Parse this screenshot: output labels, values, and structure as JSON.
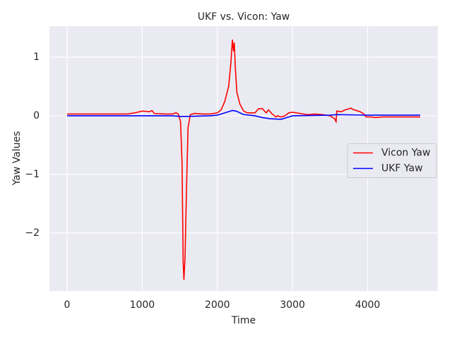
{
  "chart_data": {
    "type": "line",
    "title": "UKF vs. Vicon: Yaw",
    "x_label": "Time",
    "y_label": "Yaw Values",
    "xlim": [
      -235,
      4935
    ],
    "ylim": [
      -2.99,
      1.53
    ],
    "xticks": [
      0,
      1000,
      2000,
      3000,
      4000
    ],
    "yticks": [
      {
        "value": -2,
        "label": "−2"
      },
      {
        "value": -1,
        "label": "−1"
      },
      0,
      1
    ],
    "grid": true,
    "background": "#eaeaf2",
    "legend": "right",
    "series": [
      {
        "name": "Vicon Yaw",
        "color": "#ff0000",
        "x": [
          0,
          500,
          800,
          900,
          1000,
          1100,
          1130,
          1160,
          1300,
          1400,
          1450,
          1480,
          1510,
          1530,
          1545,
          1555,
          1570,
          1590,
          1610,
          1640,
          1700,
          1800,
          1900,
          2000,
          2050,
          2100,
          2150,
          2180,
          2200,
          2215,
          2225,
          2240,
          2260,
          2300,
          2350,
          2400,
          2500,
          2550,
          2600,
          2650,
          2680,
          2730,
          2780,
          2800,
          2850,
          2900,
          2950,
          3000,
          3100,
          3200,
          3300,
          3400,
          3500,
          3560,
          3580,
          3590,
          3650,
          3700,
          3780,
          3800,
          3900,
          3950,
          3980,
          4050,
          4100,
          4200,
          4500,
          4700
        ],
        "values": [
          0.03,
          0.03,
          0.03,
          0.05,
          0.08,
          0.07,
          0.09,
          0.04,
          0.03,
          0.03,
          0.05,
          0.03,
          -0.1,
          -0.8,
          -2.5,
          -2.8,
          -2.4,
          -1.2,
          -0.2,
          0.02,
          0.04,
          0.03,
          0.03,
          0.05,
          0.1,
          0.25,
          0.5,
          0.9,
          1.3,
          1.1,
          1.25,
          0.8,
          0.4,
          0.2,
          0.08,
          0.05,
          0.05,
          0.12,
          0.12,
          0.05,
          0.1,
          0.03,
          -0.02,
          0.0,
          -0.02,
          0.0,
          0.05,
          0.06,
          0.04,
          0.02,
          0.03,
          0.02,
          0.0,
          -0.05,
          -0.1,
          0.08,
          0.07,
          0.1,
          0.13,
          0.11,
          0.07,
          0.03,
          -0.02,
          -0.02,
          -0.03,
          -0.02,
          -0.02,
          -0.02
        ]
      },
      {
        "name": "UKF Yaw",
        "color": "#0000ff",
        "x": [
          0,
          1000,
          1400,
          1500,
          1600,
          1900,
          2000,
          2100,
          2200,
          2250,
          2350,
          2500,
          2600,
          2700,
          2850,
          2950,
          3000,
          3500,
          3600,
          4000,
          4700
        ],
        "values": [
          0,
          0,
          0,
          -0.01,
          -0.01,
          0,
          0.01,
          0.05,
          0.09,
          0.08,
          0.02,
          0.0,
          -0.03,
          -0.05,
          -0.06,
          -0.02,
          0.0,
          0.01,
          0.02,
          0.01,
          0.01
        ]
      }
    ]
  }
}
